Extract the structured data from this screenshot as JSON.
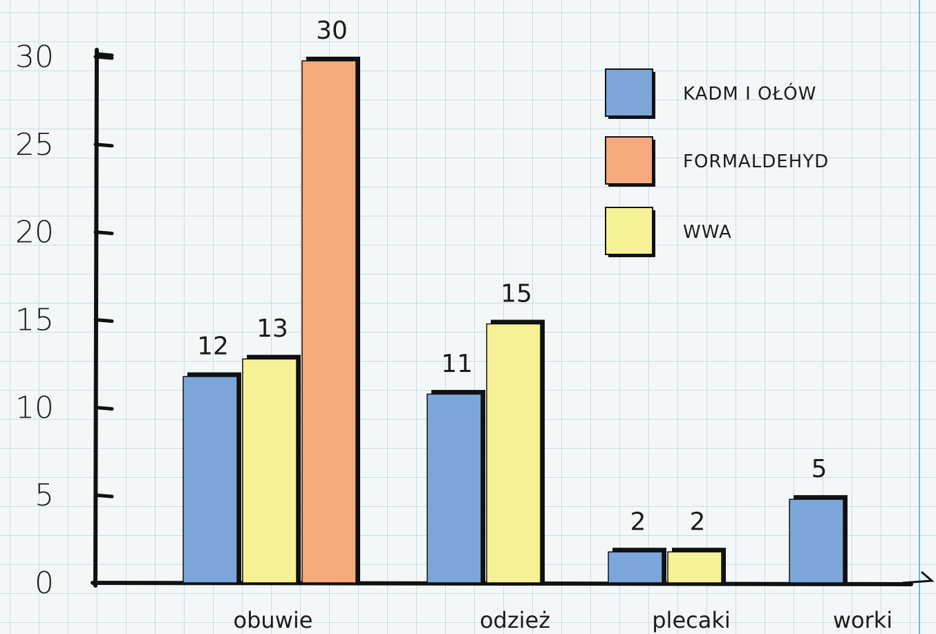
{
  "chart_data": {
    "type": "bar",
    "categories": [
      "obuwie",
      "odzież",
      "plecaki",
      "worki"
    ],
    "series": [
      {
        "name": "KADM I OŁÓW",
        "color": "#7ca6da",
        "values": [
          12,
          11,
          2,
          5
        ]
      },
      {
        "name": "WWA",
        "color": "#f6f196",
        "values": [
          13,
          15,
          2,
          null
        ]
      },
      {
        "name": "FORMALDEHYD",
        "color": "#f6a97d",
        "values": [
          30,
          null,
          null,
          null
        ]
      }
    ],
    "legend_order": [
      "KADM I OŁÓW",
      "FORMALDEHYD",
      "WWA"
    ],
    "yticks": [
      "0",
      "5",
      "10",
      "15",
      "20",
      "25",
      "30"
    ],
    "ylim": [
      0,
      30
    ],
    "legend_position": "top-right",
    "grid": true,
    "colors": {
      "grid": "#c6dde4",
      "axis": "#111111",
      "margin_line": "#6fb6e6"
    }
  }
}
